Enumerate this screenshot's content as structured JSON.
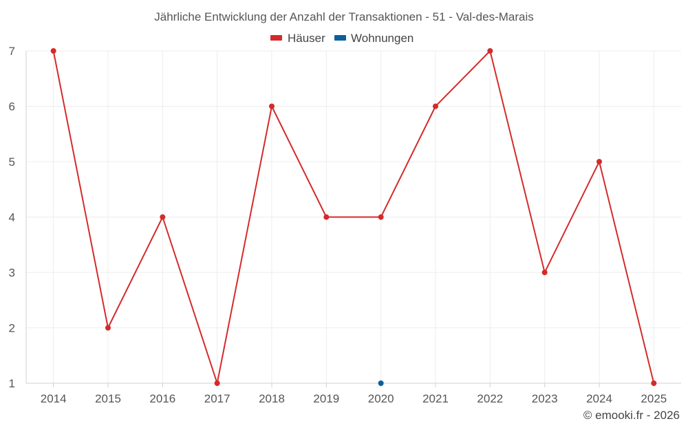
{
  "chart_data": {
    "type": "line",
    "title": "Jährliche Entwicklung der Anzahl der Transaktionen - 51 - Val-des-Marais",
    "categories": [
      "2014",
      "2015",
      "2016",
      "2017",
      "2018",
      "2019",
      "2020",
      "2021",
      "2022",
      "2023",
      "2024",
      "2025"
    ],
    "y_ticks": [
      "1",
      "2",
      "3",
      "4",
      "5",
      "6",
      "7"
    ],
    "ylim": [
      1,
      7
    ],
    "grid": true,
    "legend_position": "top-center",
    "series": [
      {
        "name": "Häuser",
        "color": "#d42a2a",
        "values": [
          7,
          2,
          4,
          1,
          6,
          4,
          4,
          6,
          7,
          3,
          5,
          1
        ]
      },
      {
        "name": "Wohnungen",
        "color": "#0b5f9e",
        "values": [
          null,
          null,
          null,
          null,
          null,
          null,
          1,
          null,
          null,
          null,
          null,
          null
        ]
      }
    ]
  },
  "credit": "© emooki.fr - 2026"
}
